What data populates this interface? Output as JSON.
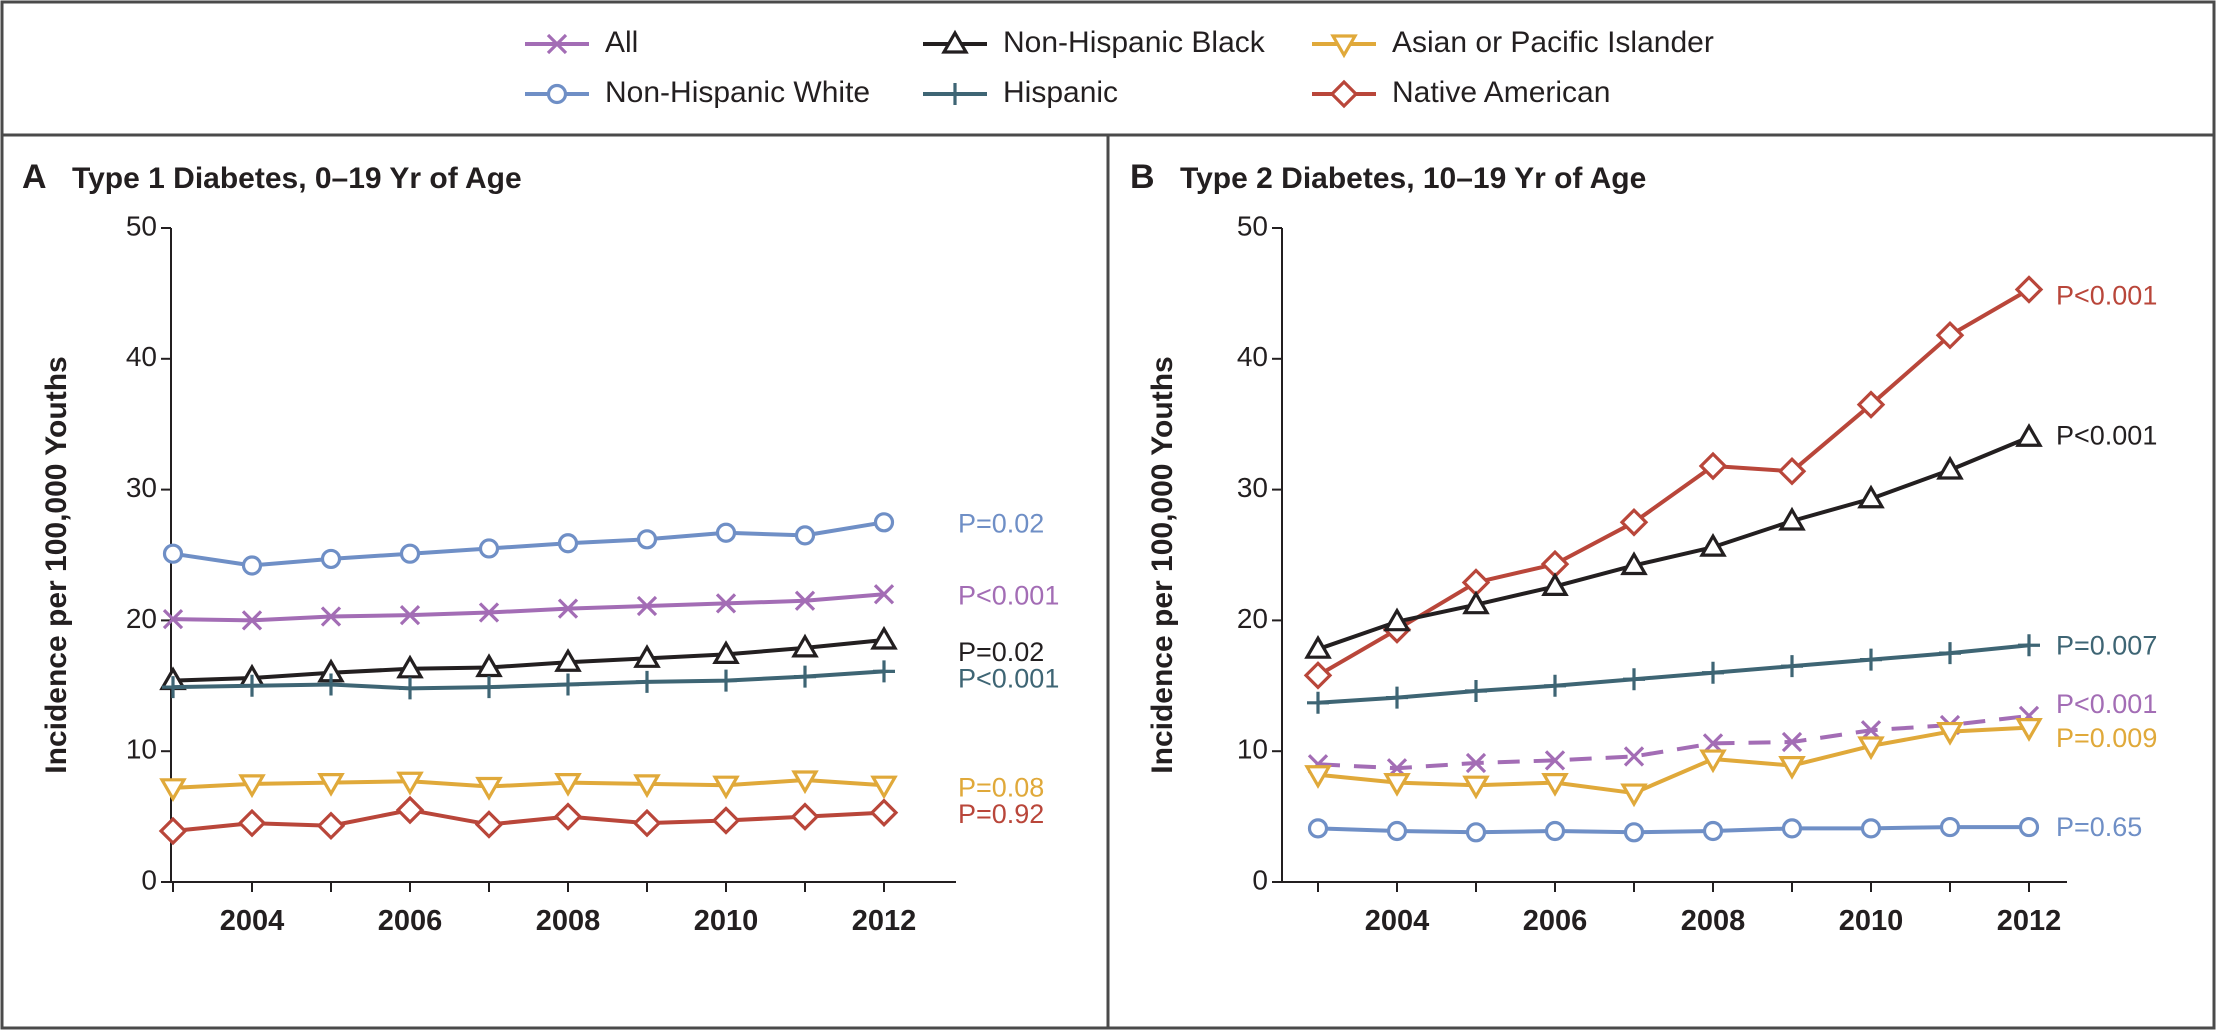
{
  "colors": {
    "All": "#a36db5",
    "Non-Hispanic White": "#6f8fc6",
    "Non-Hispanic Black": "#231f20",
    "Hispanic": "#3e6574",
    "Asian or Pacific Islander": "#e0a93a",
    "Native American": "#b9463a"
  },
  "legend": [
    {
      "name": "All",
      "marker": "x-icon"
    },
    {
      "name": "Non-Hispanic White",
      "marker": "circle-icon"
    },
    {
      "name": "Non-Hispanic Black",
      "marker": "triangle-up-icon"
    },
    {
      "name": "Hispanic",
      "marker": "plus-icon"
    },
    {
      "name": "Asian or Pacific Islander",
      "marker": "triangle-down-icon"
    },
    {
      "name": "Native American",
      "marker": "diamond-icon"
    }
  ],
  "chart_data": [
    {
      "type": "line",
      "panel_letter": "A",
      "title": "Type 1 Diabetes, 0–19 Yr of Age",
      "xlabel": "",
      "ylabel": "Incidence per 100,000 Youths",
      "x": [
        2003,
        2004,
        2005,
        2006,
        2007,
        2008,
        2009,
        2010,
        2011,
        2012
      ],
      "xticks": [
        "2004",
        "2006",
        "2008",
        "2010",
        "2012"
      ],
      "yticks": [
        "0",
        "10",
        "20",
        "30",
        "40",
        "50"
      ],
      "ylim": [
        0,
        50
      ],
      "grid": false,
      "series": [
        {
          "name": "Non-Hispanic White",
          "values": [
            25.1,
            24.2,
            24.7,
            25.1,
            25.5,
            25.9,
            26.2,
            26.7,
            26.5,
            27.5
          ],
          "pvalue": "P=0.02"
        },
        {
          "name": "All",
          "values": [
            20.1,
            20.0,
            20.3,
            20.4,
            20.6,
            20.9,
            21.1,
            21.3,
            21.5,
            22.0
          ],
          "pvalue": "P<0.001"
        },
        {
          "name": "Non-Hispanic Black",
          "values": [
            15.4,
            15.6,
            16.0,
            16.3,
            16.4,
            16.8,
            17.1,
            17.4,
            17.9,
            18.5
          ],
          "pvalue": "P=0.02"
        },
        {
          "name": "Hispanic",
          "values": [
            14.9,
            15.0,
            15.1,
            14.8,
            14.9,
            15.1,
            15.3,
            15.4,
            15.7,
            16.1
          ],
          "pvalue": "P<0.001"
        },
        {
          "name": "Asian or Pacific Islander",
          "values": [
            7.2,
            7.5,
            7.6,
            7.7,
            7.3,
            7.6,
            7.5,
            7.4,
            7.8,
            7.4
          ],
          "pvalue": "P=0.08"
        },
        {
          "name": "Native American",
          "values": [
            3.9,
            4.5,
            4.3,
            5.5,
            4.4,
            5.0,
            4.5,
            4.7,
            5.0,
            5.3
          ],
          "pvalue": "P=0.92"
        }
      ]
    },
    {
      "type": "line",
      "panel_letter": "B",
      "title": "Type 2 Diabetes, 10–19 Yr of Age",
      "xlabel": "",
      "ylabel": "Incidence per 100,000 Youths",
      "x": [
        2003,
        2004,
        2005,
        2006,
        2007,
        2008,
        2009,
        2010,
        2011,
        2012
      ],
      "xticks": [
        "2004",
        "2006",
        "2008",
        "2010",
        "2012"
      ],
      "yticks": [
        "0",
        "10",
        "20",
        "30",
        "40",
        "50"
      ],
      "ylim": [
        0,
        50
      ],
      "grid": false,
      "series": [
        {
          "name": "Native American",
          "values": [
            15.8,
            19.3,
            22.9,
            24.3,
            27.5,
            31.8,
            31.4,
            36.5,
            41.8,
            45.3
          ],
          "pvalue": "P<0.001"
        },
        {
          "name": "Non-Hispanic Black",
          "values": [
            17.8,
            19.9,
            21.2,
            22.6,
            24.2,
            25.6,
            27.6,
            29.3,
            31.5,
            34.0
          ],
          "pvalue": "P<0.001"
        },
        {
          "name": "Hispanic",
          "values": [
            13.7,
            14.1,
            14.6,
            15.0,
            15.5,
            16.0,
            16.5,
            17.0,
            17.5,
            18.1
          ],
          "pvalue": "P=0.007"
        },
        {
          "name": "All",
          "values": [
            9.0,
            8.7,
            9.1,
            9.3,
            9.6,
            10.6,
            10.7,
            11.6,
            12.0,
            12.7
          ],
          "pvalue": "P<0.001",
          "dashed": true
        },
        {
          "name": "Asian or Pacific Islander",
          "values": [
            8.2,
            7.6,
            7.4,
            7.6,
            6.8,
            9.4,
            8.9,
            10.4,
            11.5,
            11.8
          ],
          "pvalue": "P=0.009"
        },
        {
          "name": "Non-Hispanic White",
          "values": [
            4.1,
            3.9,
            3.8,
            3.9,
            3.8,
            3.9,
            4.1,
            4.1,
            4.2,
            4.2
          ],
          "pvalue": "P=0.65"
        }
      ]
    }
  ]
}
